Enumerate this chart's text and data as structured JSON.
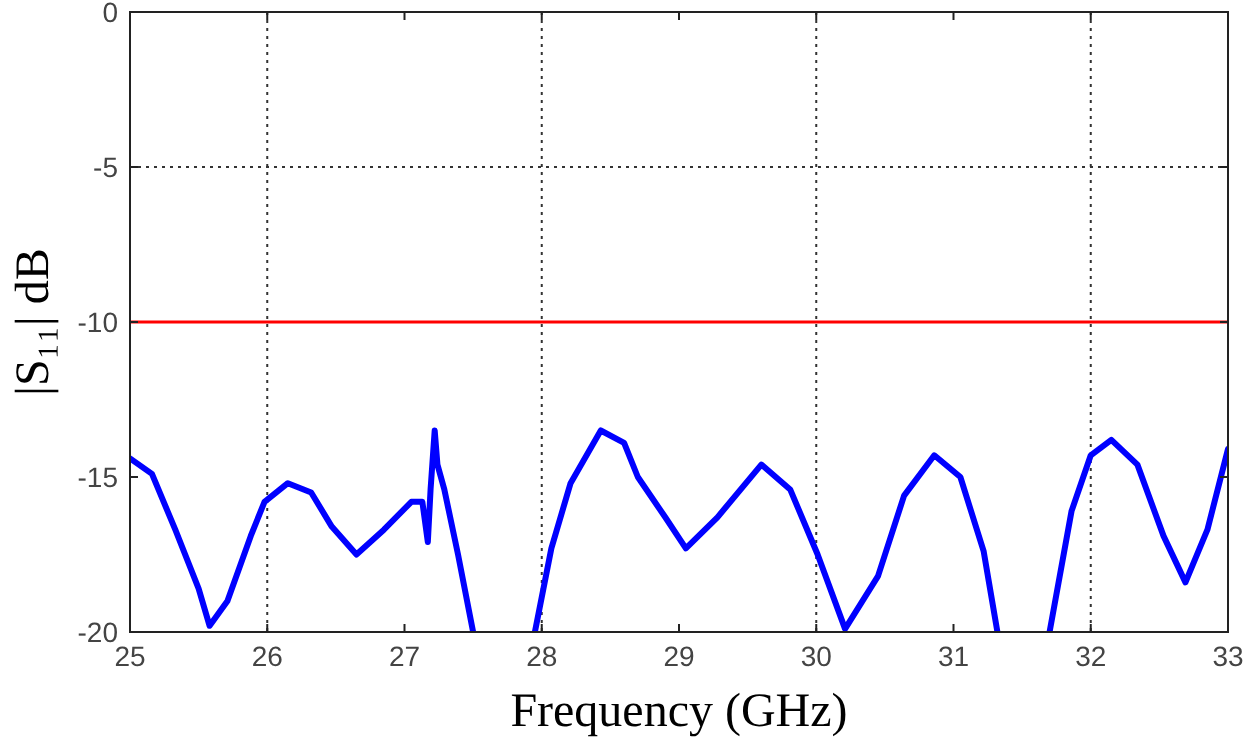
{
  "chart_data": {
    "type": "line",
    "xlabel": "Frequency (GHz)",
    "ylabel": "|S₁₁| dB",
    "xlim": [
      25,
      33
    ],
    "ylim": [
      -20,
      0
    ],
    "xticks": [
      25,
      26,
      27,
      28,
      29,
      30,
      31,
      32,
      33
    ],
    "yticks": [
      -20,
      -15,
      -10,
      -5,
      0
    ],
    "grid": false,
    "line_style": "solid",
    "marker": "none",
    "ref_lines": [
      {
        "axis": "x",
        "value": 26,
        "line_style": "dotted",
        "color": "#333333"
      },
      {
        "axis": "x",
        "value": 28,
        "line_style": "dotted",
        "color": "#333333"
      },
      {
        "axis": "x",
        "value": 30,
        "line_style": "dotted",
        "color": "#333333"
      },
      {
        "axis": "x",
        "value": 32,
        "line_style": "dotted",
        "color": "#333333"
      },
      {
        "axis": "y",
        "value": -5,
        "line_style": "dotted",
        "color": "#333333"
      },
      {
        "axis": "y",
        "value": -10,
        "line_style": "solid",
        "color": "#ff0000"
      }
    ],
    "series": [
      {
        "color": "#0000ff",
        "x": [
          25.0,
          25.16,
          25.33,
          25.5,
          25.58,
          25.71,
          25.88,
          25.98,
          26.15,
          26.32,
          26.47,
          26.65,
          26.85,
          27.05,
          27.13,
          27.17,
          27.19,
          27.22,
          27.24,
          27.29,
          27.39,
          27.5,
          27.7,
          27.95,
          28.07,
          28.21,
          28.43,
          28.6,
          28.7,
          28.9,
          29.05,
          29.28,
          29.6,
          29.81,
          30.01,
          30.21,
          30.45,
          30.64,
          30.86,
          31.05,
          31.22,
          31.32,
          31.5,
          31.7,
          31.86,
          32.0,
          32.15,
          32.34,
          32.53,
          32.69,
          32.85,
          33.0
        ],
        "values": [
          -14.4,
          -14.9,
          -16.7,
          -18.6,
          -19.8,
          -19.0,
          -16.9,
          -15.8,
          -15.2,
          -15.5,
          -16.6,
          -17.5,
          -16.7,
          -15.8,
          -15.8,
          -17.1,
          -15.4,
          -13.5,
          -14.6,
          -15.4,
          -17.5,
          -20,
          null,
          -20,
          -17.3,
          -15.2,
          -13.5,
          -13.9,
          -15.0,
          -16.3,
          -17.3,
          -16.3,
          -14.6,
          -15.4,
          -17.5,
          -19.9,
          -18.2,
          -15.6,
          -14.3,
          -15.0,
          -17.4,
          -20,
          null,
          -20,
          -16.1,
          -14.3,
          -13.8,
          -14.6,
          -16.9,
          -18.4,
          -16.7,
          -14.1
        ]
      }
    ]
  }
}
